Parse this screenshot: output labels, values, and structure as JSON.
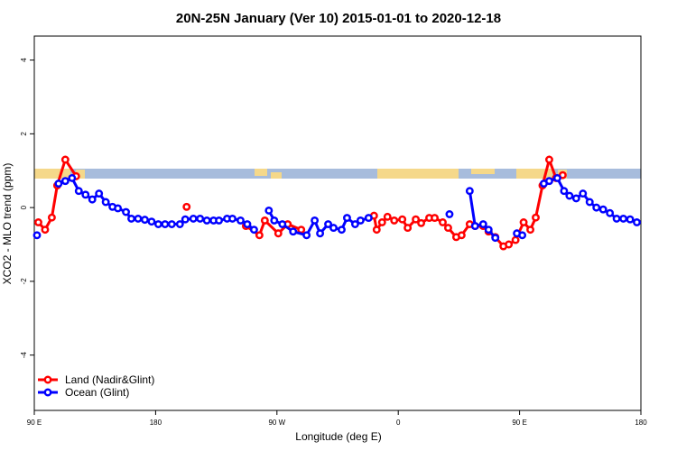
{
  "chart_data": {
    "type": "line",
    "title": "20N-25N January (Ver 10)   2015-01-01 to 2020-12-18",
    "x_label": "Longitude (deg E)",
    "y_label": "XCO2 - MLO trend (ppm)",
    "xlim": [
      90,
      540
    ],
    "ylim": [
      -5.5,
      4.65
    ],
    "xticks": [
      {
        "value": 90,
        "label": "90 E"
      },
      {
        "value": 180,
        "label": "180"
      },
      {
        "value": 270,
        "label": "90 W"
      },
      {
        "value": 360,
        "label": "0"
      },
      {
        "value": 450,
        "label": "90 E"
      },
      {
        "value": 540,
        "label": "180"
      }
    ],
    "yticks": [
      -4,
      -2,
      0,
      2,
      4
    ],
    "legend": "bottom-left",
    "series": [
      {
        "name": "Land (Nadir&Glint)",
        "color": "#ff0000",
        "x": [
          93,
          98,
          103,
          107,
          113,
          121,
          160,
          203,
          225,
          247,
          257,
          261,
          271,
          278,
          288,
          315,
          342,
          344,
          348,
          352,
          357,
          363,
          367,
          373,
          377,
          383,
          387,
          393,
          397,
          403,
          407,
          413,
          417,
          423,
          427,
          432,
          438,
          442,
          447,
          453,
          458,
          462,
          467,
          472,
          477,
          482
        ],
        "values": [
          -0.4,
          -0.6,
          -0.27,
          0.6,
          1.3,
          0.85,
          null,
          0.02,
          null,
          -0.5,
          -0.75,
          -0.35,
          -0.7,
          -0.45,
          -0.6,
          null,
          -0.22,
          -0.6,
          -0.4,
          -0.25,
          -0.35,
          -0.32,
          -0.55,
          -0.32,
          -0.42,
          -0.28,
          -0.28,
          -0.4,
          -0.55,
          -0.8,
          -0.75,
          -0.45,
          -0.5,
          -0.5,
          -0.65,
          -0.8,
          -1.05,
          -1.0,
          -0.88,
          -0.4,
          -0.6,
          -0.27,
          0.6,
          1.3,
          0.8,
          0.88
        ]
      },
      {
        "name": "Ocean (Glint)",
        "color": "#0000ff",
        "x": [
          92,
          100,
          108,
          113,
          118,
          123,
          128,
          133,
          138,
          143,
          148,
          152,
          158,
          162,
          167,
          172,
          177,
          182,
          187,
          192,
          198,
          202,
          208,
          213,
          218,
          223,
          227,
          233,
          237,
          243,
          248,
          253,
          258,
          264,
          268,
          274,
          282,
          292,
          298,
          302,
          308,
          312,
          318,
          322,
          328,
          332,
          338,
          368,
          398,
          405,
          413,
          417,
          423,
          427,
          432,
          440,
          448,
          452,
          460,
          468,
          472,
          478,
          483,
          487,
          492,
          497,
          502,
          507,
          512,
          517,
          522,
          527,
          532,
          537
        ],
        "values": [
          -0.75,
          null,
          0.65,
          0.72,
          0.8,
          0.45,
          0.35,
          0.22,
          0.38,
          0.15,
          0.02,
          -0.02,
          -0.12,
          -0.3,
          -0.3,
          -0.33,
          -0.38,
          -0.45,
          -0.45,
          -0.45,
          -0.45,
          -0.32,
          -0.3,
          -0.3,
          -0.35,
          -0.35,
          -0.35,
          -0.3,
          -0.3,
          -0.35,
          -0.45,
          -0.6,
          null,
          -0.08,
          -0.35,
          -0.45,
          -0.65,
          -0.75,
          -0.35,
          -0.7,
          -0.45,
          -0.55,
          -0.6,
          -0.28,
          -0.45,
          -0.35,
          -0.28,
          null,
          -0.18,
          null,
          0.45,
          -0.5,
          -0.45,
          -0.6,
          -0.82,
          null,
          -0.7,
          -0.75,
          null,
          0.65,
          0.72,
          0.8,
          0.45,
          0.32,
          0.25,
          0.38,
          0.15,
          0.0,
          -0.05,
          -0.15,
          -0.3,
          -0.3,
          -0.32,
          -0.4
        ]
      }
    ]
  }
}
